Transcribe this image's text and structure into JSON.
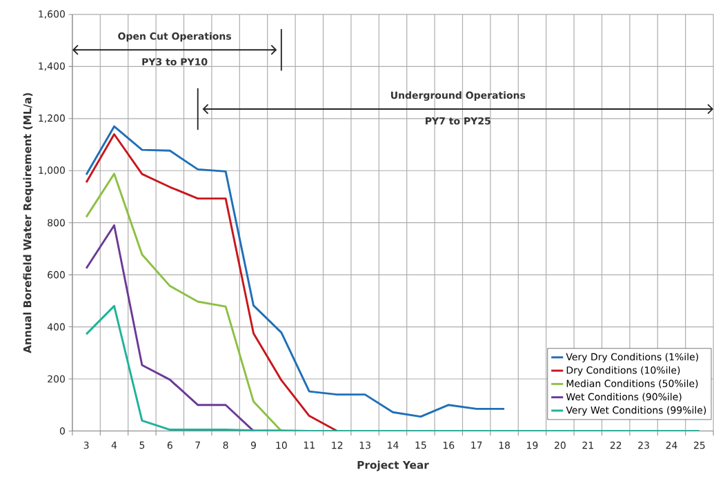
{
  "chart_data": {
    "type": "line",
    "xlabel": "Project Year",
    "ylabel": "Annual Borefield Water Requirement (ML/a)",
    "categories": [
      "3",
      "4",
      "5",
      "6",
      "7",
      "8",
      "9",
      "10",
      "11",
      "12",
      "13",
      "14",
      "15",
      "16",
      "17",
      "18",
      "19",
      "20",
      "21",
      "22",
      "23",
      "24",
      "25"
    ],
    "series": [
      {
        "name": "Very Dry Conditions (1%ile)",
        "color": "#1f6fb8",
        "values": [
          985,
          1170,
          1080,
          1077,
          1005,
          997,
          482,
          378,
          152,
          140,
          140,
          72,
          55,
          100,
          85,
          85,
          null,
          null,
          null,
          null,
          null,
          null,
          null
        ]
      },
      {
        "name": "Dry Conditions (10%ile)",
        "color": "#c8161d",
        "values": [
          955,
          1140,
          987,
          937,
          893,
          893,
          375,
          195,
          58,
          0,
          null,
          null,
          null,
          null,
          null,
          null,
          null,
          null,
          null,
          null,
          null,
          null,
          null
        ]
      },
      {
        "name": "Median Conditions (50%ile)",
        "color": "#8cc043",
        "values": [
          822,
          988,
          678,
          557,
          497,
          478,
          113,
          0,
          null,
          null,
          null,
          null,
          null,
          null,
          null,
          null,
          null,
          null,
          null,
          null,
          null,
          null,
          null
        ]
      },
      {
        "name": "Wet Conditions (90%ile)",
        "color": "#6b3a96",
        "values": [
          625,
          790,
          253,
          197,
          100,
          100,
          0,
          null,
          null,
          null,
          null,
          null,
          null,
          null,
          null,
          null,
          null,
          null,
          null,
          null,
          null,
          null,
          null
        ]
      },
      {
        "name": "Very Wet Conditions (99%ile)",
        "color": "#1fb29a",
        "values": [
          372,
          480,
          40,
          5,
          5,
          5,
          2,
          2,
          0,
          0,
          0,
          0,
          0,
          0,
          0,
          0,
          0,
          0,
          0,
          0,
          0,
          0,
          0
        ]
      }
    ],
    "ylim": [
      0,
      1600
    ],
    "yticks": [
      {
        "value": 0,
        "label": "0"
      },
      {
        "value": 200,
        "label": "200"
      },
      {
        "value": 400,
        "label": "400"
      },
      {
        "value": 600,
        "label": "600"
      },
      {
        "value": 800,
        "label": "800"
      },
      {
        "value": 1000,
        "label": "1,000"
      },
      {
        "value": 1200,
        "label": "1,200"
      },
      {
        "value": 1400,
        "label": "1,400"
      },
      {
        "value": 1600,
        "label": "1,600"
      }
    ],
    "grid": true,
    "legend": "bottom right",
    "marker": "none",
    "line_style": "solid",
    "annotations": [
      "Open Cut Operations",
      "PY3 to PY10",
      "Underground Operations",
      "PY7 to PY25"
    ]
  }
}
